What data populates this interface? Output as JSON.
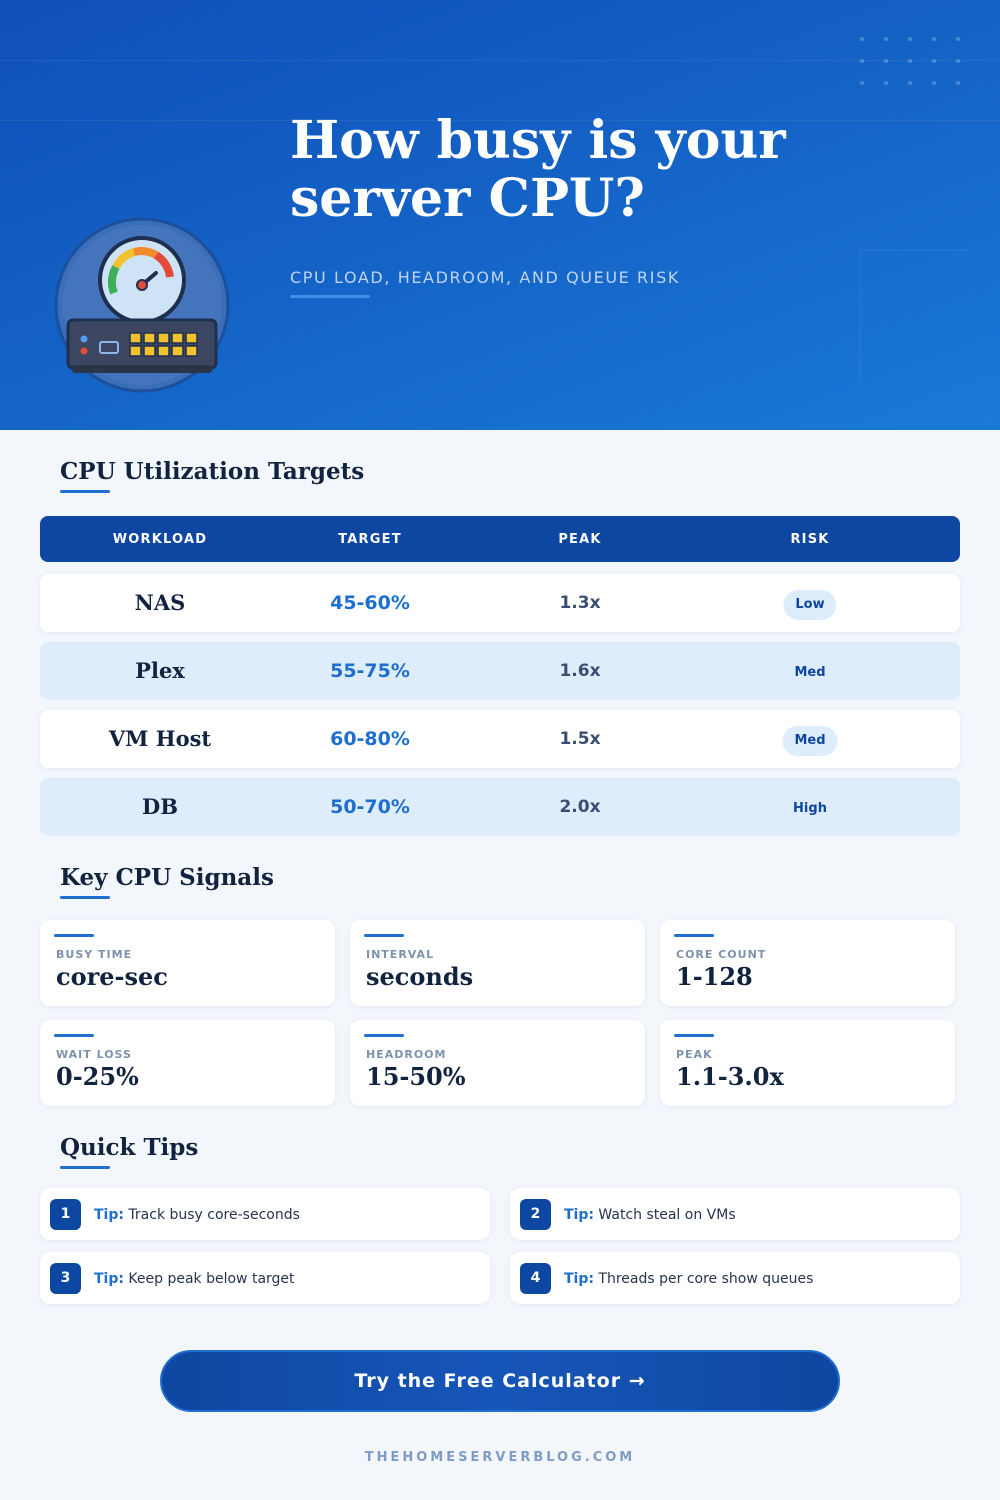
{
  "header": {
    "title": "How busy is your server CPU?",
    "subtitle": "CPU LOAD, HEADROOM, AND QUEUE RISK",
    "icon": "cpu-gauge-server-icon"
  },
  "table_section": {
    "title": "CPU Utilization Targets",
    "columns": [
      "WORKLOAD",
      "TARGET",
      "PEAK",
      "RISK"
    ],
    "rows": [
      {
        "workload": "NAS",
        "target": "45-60%",
        "peak": "1.3x",
        "risk": "Low"
      },
      {
        "workload": "Plex",
        "target": "55-75%",
        "peak": "1.6x",
        "risk": "Med"
      },
      {
        "workload": "VM Host",
        "target": "60-80%",
        "peak": "1.5x",
        "risk": "Med"
      },
      {
        "workload": "DB",
        "target": "50-70%",
        "peak": "2.0x",
        "risk": "High"
      }
    ]
  },
  "signals_section": {
    "title": "Key CPU Signals",
    "cards": [
      {
        "label": "BUSY TIME",
        "value": "core-sec"
      },
      {
        "label": "INTERVAL",
        "value": "seconds"
      },
      {
        "label": "CORE COUNT",
        "value": "1-128"
      },
      {
        "label": "WAIT LOSS",
        "value": "0-25%"
      },
      {
        "label": "HEADROOM",
        "value": "15-50%"
      },
      {
        "label": "PEAK",
        "value": "1.1-3.0x"
      }
    ]
  },
  "tips_section": {
    "title": "Quick Tips",
    "prefix": "Tip:",
    "tips": [
      {
        "num": "1",
        "text": "Track busy core-seconds"
      },
      {
        "num": "2",
        "text": "Watch steal on VMs"
      },
      {
        "num": "3",
        "text": "Keep peak below target"
      },
      {
        "num": "4",
        "text": "Threads per core show queues"
      }
    ]
  },
  "cta": {
    "label": "Try the Free Calculator →"
  },
  "footer": {
    "site": "THEHOMESERVERBLOG.COM"
  },
  "colors": {
    "primary": "#0e47a1",
    "accent": "#1f6fd0",
    "row_alt": "#deedfb",
    "background": "#f3f6fb"
  }
}
